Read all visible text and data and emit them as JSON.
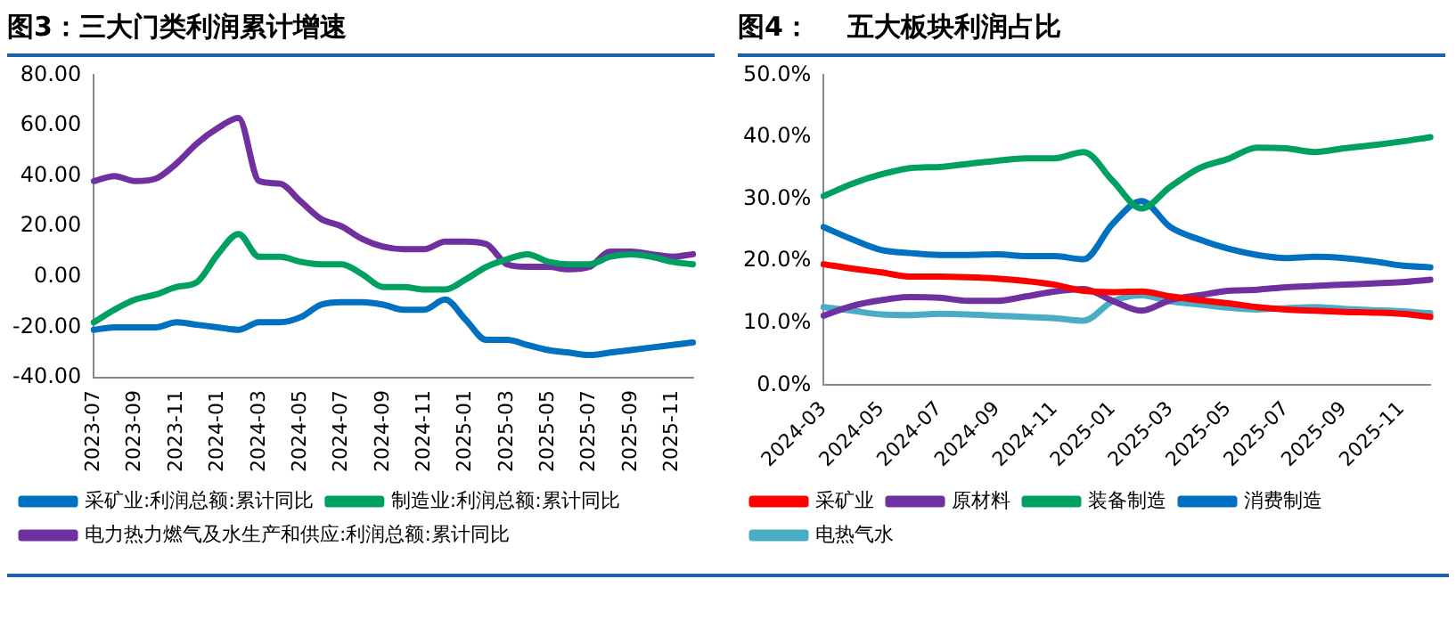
{
  "chart_data": [
    {
      "type": "line",
      "title": "图3：三大门类利润累计增速",
      "categories": [
        "2023-07",
        null,
        "2023-09",
        null,
        "2023-11",
        null,
        "2024-01",
        null,
        "2024-03",
        null,
        "2024-05",
        null,
        "2024-07",
        null,
        "2024-09",
        null,
        "2024-11",
        null,
        "2025-01",
        null,
        "2025-03",
        null,
        "2025-05",
        null,
        "2025-07",
        null,
        "2025-09",
        null,
        "2025-11",
        null
      ],
      "series": [
        {
          "name": "采矿业:利润总额:累计同比",
          "color": "#0070c0",
          "values": [
            -21,
            -20,
            -20,
            -20,
            -18,
            -19,
            -20,
            -21,
            -18,
            -18,
            -16,
            -11,
            -10,
            -10,
            -11,
            -13,
            -13,
            -9,
            -17,
            -25,
            -25,
            -27,
            -29,
            -30,
            -31,
            -30,
            -29,
            -28,
            -27,
            -26
          ]
        },
        {
          "name": "制造业:利润总额:累计同比",
          "color": "#00a060",
          "values": [
            -18,
            -13,
            -9,
            -7,
            -4,
            -2,
            9,
            17,
            8,
            8,
            6,
            5,
            5,
            1,
            -4,
            -4,
            -5,
            -5,
            -1,
            4,
            7,
            9,
            6,
            5,
            5,
            8,
            9,
            8,
            6,
            5
          ]
        },
        {
          "name": "电力热力燃气及水生产和供应:利润总额:累计同比",
          "color": "#7030a0",
          "values": [
            38,
            40,
            38,
            39,
            45,
            53,
            59,
            63,
            38,
            37,
            30,
            23,
            20,
            15,
            12,
            11,
            11,
            14,
            14,
            13,
            5,
            4,
            4,
            3,
            4,
            10,
            10,
            9,
            8,
            9
          ]
        }
      ],
      "ylim": [
        -40,
        80
      ],
      "yticks": [
        {
          "value": -40,
          "label": "-40.00"
        },
        {
          "value": -20,
          "label": "-20.00"
        },
        {
          "value": 0,
          "label": "0.00"
        },
        {
          "value": 20,
          "label": "20.00"
        },
        {
          "value": 40,
          "label": "40.00"
        },
        {
          "value": 60,
          "label": "60.00"
        },
        {
          "value": 80,
          "label": "80.00"
        }
      ],
      "grid": false,
      "legend": "bottom",
      "marker": "none",
      "line_style": "solid"
    },
    {
      "type": "line",
      "title": "图4：    五大板块利润占比",
      "categories": [
        "2024-03",
        null,
        "2024-05",
        null,
        "2024-07",
        null,
        "2024-09",
        null,
        "2024-11",
        null,
        "2025-01",
        null,
        "2025-03",
        null,
        "2025-05",
        null,
        "2025-07",
        null,
        "2025-09",
        null,
        "2025-11",
        null
      ],
      "series": [
        {
          "name": "采矿业",
          "color": "#ff0000",
          "values": [
            19.5,
            18.8,
            18.2,
            17.5,
            17.5,
            17.4,
            17.2,
            16.8,
            16.2,
            15.2,
            15,
            15.1,
            14.3,
            13.7,
            13.2,
            12.6,
            12.2,
            12,
            11.8,
            11.7,
            11.5,
            11
          ]
        },
        {
          "name": "原材料",
          "color": "#7030a0",
          "values": [
            11.2,
            12.8,
            13.7,
            14.2,
            14.1,
            13.6,
            13.6,
            14.3,
            15.1,
            15.5,
            13.6,
            12,
            13.7,
            14.5,
            15.2,
            15.4,
            15.8,
            16,
            16.2,
            16.4,
            16.6,
            17
          ]
        },
        {
          "name": "装备制造",
          "color": "#00a060",
          "values": [
            30.5,
            32.5,
            34,
            35,
            35.2,
            35.7,
            36.2,
            36.6,
            36.6,
            37.6,
            33,
            28.5,
            32,
            35,
            36.5,
            38.3,
            38.2,
            37.6,
            38.2,
            38.7,
            39.3,
            40
          ]
        },
        {
          "name": "消费制造",
          "color": "#0070c0",
          "values": [
            25.5,
            23.5,
            21.8,
            21.3,
            21,
            21,
            21.1,
            20.8,
            20.8,
            20.3,
            26,
            29.7,
            25.5,
            23.5,
            22,
            21,
            20.5,
            20.7,
            20.5,
            20,
            19.3,
            19
          ]
        },
        {
          "name": "电热气水",
          "color": "#4bacc6",
          "values": [
            12.6,
            12,
            11.4,
            11.3,
            11.5,
            11.4,
            11.2,
            11,
            10.8,
            10.4,
            13.5,
            14.5,
            13.5,
            13,
            12.5,
            12.2,
            12.4,
            12.6,
            12.3,
            12.1,
            11.9,
            11.6
          ]
        }
      ],
      "ylim": [
        0,
        50
      ],
      "yticks": [
        {
          "value": 0,
          "label": "0.0%"
        },
        {
          "value": 10,
          "label": "10.0%"
        },
        {
          "value": 20,
          "label": "20.0%"
        },
        {
          "value": 30,
          "label": "30.0%"
        },
        {
          "value": 40,
          "label": "40.0%"
        },
        {
          "value": 50,
          "label": "50.0%"
        }
      ],
      "grid": false,
      "legend": "bottom",
      "marker": "none",
      "line_style": "solid"
    }
  ]
}
